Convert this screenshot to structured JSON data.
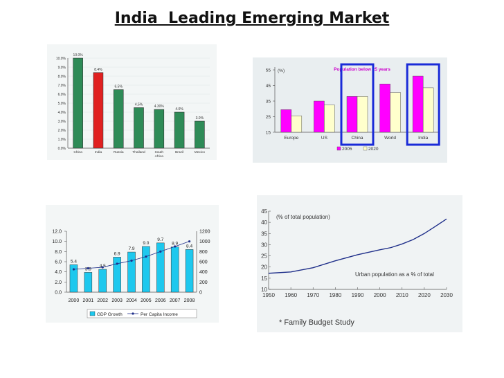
{
  "slide": {
    "title": "India  Leading Emerging Market"
  },
  "chart_data": [
    {
      "type": "bar",
      "title": "",
      "categories": [
        "China",
        "India",
        "Russia",
        "Thailand",
        "South Africa",
        "Brazil",
        "Mexico"
      ],
      "values": [
        10.0,
        8.4,
        6.5,
        4.5,
        4.3,
        4.0,
        3.0
      ],
      "value_labels": [
        "10.0%",
        "8.4%",
        "6.5%",
        "4.5%",
        "4.30%",
        "4.0%",
        "3.0%"
      ],
      "highlight": "India",
      "ytick_labels": [
        "10.0%",
        "9.0%",
        "8.0%",
        "7.0%",
        "6.0%",
        "5.0%",
        "4.0%",
        "3.0%",
        "2.0%",
        "1.0%",
        "0.0%"
      ],
      "ylim": [
        0,
        10
      ],
      "colors": {
        "bar": "#2e8b57",
        "highlight": "#e02020"
      }
    },
    {
      "type": "bar",
      "title": "Population below 25 years",
      "unit_label": "(%)",
      "categories": [
        "Europe",
        "US",
        "China",
        "World",
        "India"
      ],
      "series": [
        {
          "name": "2005",
          "values": [
            29.5,
            35,
            38,
            46,
            51
          ]
        },
        {
          "name": "2020",
          "values": [
            25.5,
            32.5,
            38,
            40.5,
            43.5
          ]
        }
      ],
      "highlighted_categories": [
        "China",
        "India"
      ],
      "ylim": [
        15,
        55
      ],
      "yticks": [
        15,
        25,
        35,
        45,
        55
      ],
      "colors": {
        "2005": "#ff00ff",
        "2020": "#ffffcc",
        "highlight_box": "#1a2bd8",
        "title": "#cc00cc"
      }
    },
    {
      "type": "bar",
      "title": "",
      "x": [
        "2000",
        "2001",
        "2002",
        "2003",
        "2004",
        "2005",
        "2006",
        "2007",
        "2008"
      ],
      "series": [
        {
          "name": "GDP Growth",
          "axis": "left",
          "values": [
            5.4,
            3.9,
            4.5,
            6.9,
            7.9,
            9.0,
            9.7,
            8.9,
            8.4
          ]
        },
        {
          "name": "Per Capita Income",
          "axis": "right",
          "kind": "line",
          "values": [
            450,
            470,
            490,
            560,
            620,
            700,
            800,
            900,
            1000
          ]
        }
      ],
      "ylim_left": [
        0,
        12
      ],
      "yticks_left": [
        "0.0",
        "2.0",
        "4.0",
        "6.0",
        "8.0",
        "10.0",
        "12.0"
      ],
      "ylim_right": [
        0,
        1200
      ],
      "yticks_right": [
        "0",
        "200",
        "400",
        "600",
        "800",
        "1000",
        "1200"
      ],
      "legend": [
        "GDP Growth",
        "Per Capita Income"
      ],
      "colors": {
        "bar": "#1ec8ee",
        "line": "#1f2f8a"
      }
    },
    {
      "type": "line",
      "title": "(% of total population)",
      "series": [
        {
          "name": "Urban population as a % of total",
          "x": [
            1950,
            1960,
            1970,
            1980,
            1990,
            2000,
            2005,
            2010,
            2015,
            2020,
            2025,
            2030
          ],
          "values": [
            17.2,
            17.8,
            19.7,
            22.8,
            25.5,
            27.7,
            28.7,
            30.3,
            32.3,
            35,
            38.2,
            41.5
          ]
        }
      ],
      "annotation": "Urban population as a % of total",
      "xticks": [
        "1950",
        "1960",
        "1970",
        "1980",
        "1990",
        "2000",
        "2010",
        "2020",
        "2030"
      ],
      "yticks": [
        "10",
        "15",
        "20",
        "25",
        "30",
        "35",
        "40",
        "45"
      ],
      "xlim": [
        1950,
        2030
      ],
      "ylim": [
        10,
        45
      ],
      "footnote": "* Family Budget Study",
      "colors": {
        "line": "#1f2f8a"
      }
    }
  ]
}
